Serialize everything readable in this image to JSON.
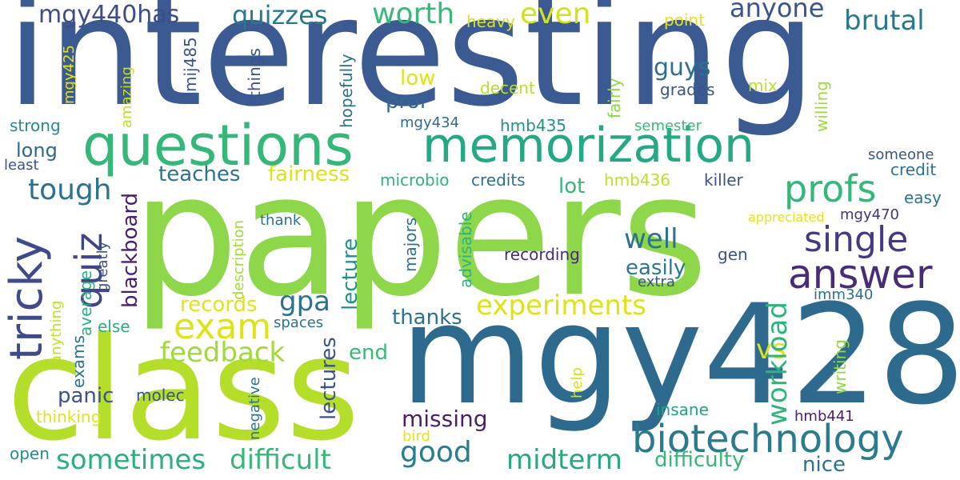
{
  "words": [
    {
      "text": "interesting",
      "color": "#3b5a92"
    },
    {
      "text": "papers",
      "color": "#8ed64a"
    },
    {
      "text": "mgy428",
      "color": "#2e6a8e"
    },
    {
      "text": "class",
      "color": "#b5de2b"
    },
    {
      "text": "questions",
      "color": "#35b779"
    },
    {
      "text": "memorization",
      "color": "#25a884"
    },
    {
      "text": "biotechnology",
      "color": "#2a7b8e"
    },
    {
      "text": "answer",
      "color": "#472c7a"
    },
    {
      "text": "single",
      "color": "#443983"
    },
    {
      "text": "profs",
      "color": "#35b779"
    },
    {
      "text": "exam",
      "color": "#dde318"
    },
    {
      "text": "experiments",
      "color": "#dde318"
    },
    {
      "text": "quiz",
      "color": "#414487"
    },
    {
      "text": "tricky",
      "color": "#3e4a89"
    },
    {
      "text": "tough",
      "color": "#2c728e"
    },
    {
      "text": "worth",
      "color": "#38b977"
    },
    {
      "text": "quizzes",
      "color": "#2a788e"
    },
    {
      "text": "even",
      "color": "#d2e21b"
    },
    {
      "text": "brutal",
      "color": "#2a768e"
    },
    {
      "text": "anyone",
      "color": "#3a548c"
    },
    {
      "text": "mgy440has",
      "color": "#3e4c8a"
    },
    {
      "text": "heavy",
      "color": "#d8e219"
    },
    {
      "text": "point",
      "color": "#e5e419"
    },
    {
      "text": "guys",
      "color": "#2d708e"
    },
    {
      "text": "grades",
      "color": "#39568c"
    },
    {
      "text": "mix",
      "color": "#bddf26"
    },
    {
      "text": "low",
      "color": "#e2e418"
    },
    {
      "text": "decent",
      "color": "#b8de29"
    },
    {
      "text": "prof",
      "color": "#31678e"
    },
    {
      "text": "mgy434",
      "color": "#2f6c8e"
    },
    {
      "text": "hmb435",
      "color": "#21918c"
    },
    {
      "text": "semester",
      "color": "#38b977"
    },
    {
      "text": "strong",
      "color": "#238a8d"
    },
    {
      "text": "long",
      "color": "#31688e"
    },
    {
      "text": "least",
      "color": "#3a538b"
    },
    {
      "text": "someone",
      "color": "#3b528b"
    },
    {
      "text": "credit",
      "color": "#2b748e"
    },
    {
      "text": "teaches",
      "color": "#2c728e"
    },
    {
      "text": "fairness",
      "color": "#dde318"
    },
    {
      "text": "microbio",
      "color": "#2eb37c"
    },
    {
      "text": "credits",
      "color": "#2d708e"
    },
    {
      "text": "lot",
      "color": "#35b779"
    },
    {
      "text": "hmb436",
      "color": "#c2df23"
    },
    {
      "text": "killer",
      "color": "#3b528b"
    },
    {
      "text": "easy",
      "color": "#2b748e"
    },
    {
      "text": "thank",
      "color": "#2c738e"
    },
    {
      "text": "appreciated",
      "color": "#e2e418"
    },
    {
      "text": "mgy470",
      "color": "#46327e"
    },
    {
      "text": "well",
      "color": "#2c728e"
    },
    {
      "text": "gen",
      "color": "#3b528b"
    },
    {
      "text": "recording",
      "color": "#472c7a"
    },
    {
      "text": "easily",
      "color": "#2a788e"
    },
    {
      "text": "extra",
      "color": "#39568c"
    },
    {
      "text": "gpa",
      "color": "#2c728e"
    },
    {
      "text": "records",
      "color": "#e2e418"
    },
    {
      "text": "imm340",
      "color": "#2d708e"
    },
    {
      "text": "thanks",
      "color": "#2c728e"
    },
    {
      "text": "spaces",
      "color": "#2c728e"
    },
    {
      "text": "else",
      "color": "#28ae80"
    },
    {
      "text": "feedback",
      "color": "#a0da39"
    },
    {
      "text": "end",
      "color": "#38b977"
    },
    {
      "text": "vs",
      "color": "#dde318"
    },
    {
      "text": "panic",
      "color": "#3b528b"
    },
    {
      "text": "molec",
      "color": "#3a538b"
    },
    {
      "text": "missing",
      "color": "#481f70"
    },
    {
      "text": "good",
      "color": "#287d8e"
    },
    {
      "text": "insane",
      "color": "#20a386"
    },
    {
      "text": "hmb441",
      "color": "#481f70"
    },
    {
      "text": "thinking",
      "color": "#e2e418"
    },
    {
      "text": "bird",
      "color": "#e5e419"
    },
    {
      "text": "open",
      "color": "#228d8d"
    },
    {
      "text": "sometimes",
      "color": "#2ab07f"
    },
    {
      "text": "difficult",
      "color": "#35b779"
    },
    {
      "text": "midterm",
      "color": "#25a884"
    },
    {
      "text": "difficulty",
      "color": "#35b779"
    },
    {
      "text": "nice",
      "color": "#2c728e"
    },
    {
      "text": "mgy425",
      "color": "#e5e419"
    },
    {
      "text": "amazing",
      "color": "#c2df23"
    },
    {
      "text": "mij485",
      "color": "#3b528b"
    },
    {
      "text": "things",
      "color": "#3a538b"
    },
    {
      "text": "hopefully",
      "color": "#2c728e"
    },
    {
      "text": "fairly",
      "color": "#8ed64a"
    },
    {
      "text": "willing",
      "color": "#9fda3a"
    },
    {
      "text": "blackboard",
      "color": "#481f70"
    },
    {
      "text": "average",
      "color": "#29af7f"
    },
    {
      "text": "greatly",
      "color": "#3b528b"
    },
    {
      "text": "lecture",
      "color": "#21918c"
    },
    {
      "text": "majors",
      "color": "#2c728e"
    },
    {
      "text": "advisable",
      "color": "#2eb37c"
    },
    {
      "text": "description",
      "color": "#a5db36"
    },
    {
      "text": "exams",
      "color": "#2c728e"
    },
    {
      "text": "anything",
      "color": "#c2df23"
    },
    {
      "text": "lectures",
      "color": "#3b528b"
    },
    {
      "text": "negative",
      "color": "#2c728e"
    },
    {
      "text": "help",
      "color": "#d8e219"
    },
    {
      "text": "workload",
      "color": "#2eb37c"
    },
    {
      "text": "writing",
      "color": "#8ed64a"
    }
  ]
}
